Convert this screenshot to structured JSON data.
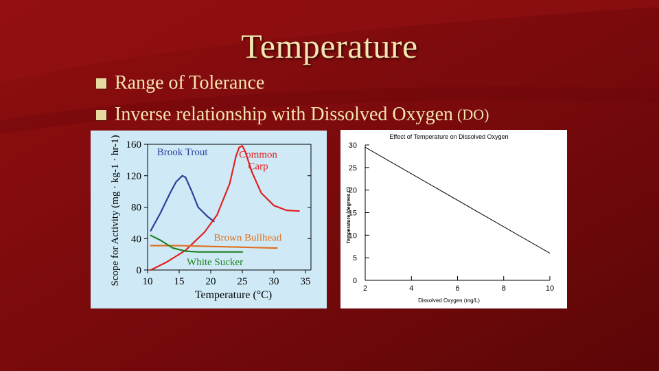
{
  "slide": {
    "title": "Temperature",
    "bullets": [
      {
        "text": "Range of Tolerance",
        "sub": ""
      },
      {
        "text": "Inverse relationship with Dissolved Oxygen",
        "sub": "(DO)"
      }
    ],
    "colors": {
      "background": "#7a0a0c",
      "text": "#f3e6b2",
      "bullet": "#e8d9a0"
    }
  },
  "chart_data": [
    {
      "type": "line",
      "title": "",
      "xlabel": "Temperature (°C)",
      "ylabel": "Scope for Activity (mg · kg-1 · hr-1)",
      "xlim": [
        10,
        35
      ],
      "ylim": [
        0,
        160
      ],
      "xticks": [
        10,
        15,
        20,
        25,
        30,
        35
      ],
      "yticks": [
        0,
        40,
        80,
        120,
        160
      ],
      "grid": false,
      "background": "#cfeaf6",
      "series": [
        {
          "name": "Brook Trout",
          "color": "#2a3f9a",
          "x": [
            10.5,
            12,
            13.5,
            14.5,
            15.5,
            16,
            17,
            18,
            19.5,
            20.5
          ],
          "y": [
            50,
            72,
            97,
            112,
            120,
            118,
            100,
            80,
            68,
            62
          ]
        },
        {
          "name": "Common Carp",
          "color": "#e02020",
          "x": [
            10.5,
            13,
            16,
            19,
            21,
            23,
            24,
            24.5,
            25,
            25.5,
            26.5,
            28,
            30,
            32,
            34
          ],
          "y": [
            0,
            10,
            25,
            48,
            70,
            110,
            145,
            156,
            158,
            150,
            125,
            98,
            82,
            76,
            75
          ]
        },
        {
          "name": "Brown Bullhead",
          "color": "#e07020",
          "x": [
            10.5,
            15,
            20,
            25,
            30,
            30.5
          ],
          "y": [
            31,
            31,
            30,
            29,
            28,
            28
          ]
        },
        {
          "name": "White Sucker",
          "color": "#208020",
          "x": [
            10.5,
            12,
            14,
            16,
            18,
            20,
            22,
            25
          ],
          "y": [
            44,
            38,
            28,
            24,
            23,
            23,
            23,
            23
          ]
        }
      ]
    },
    {
      "type": "line",
      "title": "Effect of Temperature on Dissolved Oxygen",
      "xlabel": "Dissolved Oxygen (mg/L)",
      "ylabel": "Temperature (degrees C)",
      "xlim": [
        2,
        10
      ],
      "ylim": [
        0,
        30
      ],
      "xticks": [
        2,
        4,
        6,
        8,
        10
      ],
      "yticks": [
        0,
        5,
        10,
        15,
        20,
        25,
        30
      ],
      "grid": false,
      "background": "#ffffff",
      "series": [
        {
          "name": "",
          "color": "#000000",
          "x": [
            2,
            10
          ],
          "y": [
            29.5,
            6
          ]
        }
      ]
    }
  ]
}
